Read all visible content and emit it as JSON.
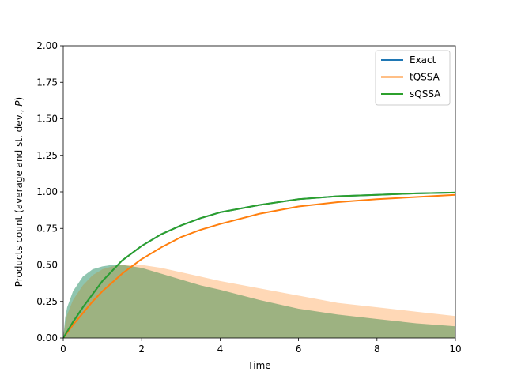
{
  "chart_data": {
    "type": "line",
    "xlabel": "Time",
    "ylabel": "Products count (average and st. dev., P)",
    "ylabel_parts": {
      "prefix": "Products count (average and st. dev., ",
      "var": "P",
      "suffix": ")"
    },
    "xlim": [
      0,
      10
    ],
    "ylim": [
      0,
      2
    ],
    "xticks": [
      0,
      2,
      4,
      6,
      8,
      10
    ],
    "xtick_labels": [
      "0",
      "2",
      "4",
      "6",
      "8",
      "10"
    ],
    "yticks": [
      0,
      0.25,
      0.5,
      0.75,
      1.0,
      1.25,
      1.5,
      1.75,
      2.0
    ],
    "ytick_labels": [
      "0.00",
      "0.25",
      "0.50",
      "0.75",
      "1.00",
      "1.25",
      "1.50",
      "1.75",
      "2.00"
    ],
    "grid": false,
    "legend_position": "top-right",
    "series": [
      {
        "name": "Exact",
        "color": "#1f77b4",
        "x": [
          0,
          0.25,
          0.5,
          0.75,
          1,
          1.5,
          2,
          2.5,
          3,
          3.5,
          4,
          5,
          6,
          7,
          8,
          9,
          10
        ],
        "y": [
          0,
          0.11,
          0.21,
          0.3,
          0.39,
          0.53,
          0.63,
          0.71,
          0.77,
          0.82,
          0.86,
          0.91,
          0.95,
          0.97,
          0.98,
          0.99,
          0.995
        ]
      },
      {
        "name": "tQSSA",
        "color": "#ff7f0e",
        "x": [
          0,
          0.25,
          0.5,
          0.75,
          1,
          1.5,
          2,
          2.5,
          3,
          3.5,
          4,
          5,
          6,
          7,
          8,
          9,
          10
        ],
        "y": [
          0,
          0.09,
          0.17,
          0.25,
          0.32,
          0.44,
          0.54,
          0.62,
          0.69,
          0.74,
          0.78,
          0.85,
          0.9,
          0.93,
          0.95,
          0.965,
          0.98
        ]
      },
      {
        "name": "sQSSA",
        "color": "#2ca02c",
        "x": [
          0,
          0.25,
          0.5,
          0.75,
          1,
          1.5,
          2,
          2.5,
          3,
          3.5,
          4,
          5,
          6,
          7,
          8,
          9,
          10
        ],
        "y": [
          0,
          0.11,
          0.21,
          0.3,
          0.39,
          0.53,
          0.63,
          0.71,
          0.77,
          0.82,
          0.86,
          0.91,
          0.95,
          0.97,
          0.98,
          0.99,
          0.995
        ]
      }
    ],
    "std_bands": [
      {
        "series": "Exact",
        "color": "#1f77b4",
        "x": [
          0,
          0.05,
          0.1,
          0.25,
          0.5,
          0.75,
          1,
          1.25,
          1.5,
          2,
          2.5,
          3,
          3.5,
          4,
          5,
          6,
          7,
          8,
          9,
          10
        ],
        "upper": [
          0,
          0.14,
          0.21,
          0.32,
          0.42,
          0.47,
          0.49,
          0.5,
          0.5,
          0.48,
          0.44,
          0.4,
          0.36,
          0.33,
          0.26,
          0.2,
          0.16,
          0.13,
          0.1,
          0.08
        ]
      },
      {
        "series": "tQSSA",
        "color": "#ff7f0e",
        "x": [
          0,
          0.05,
          0.1,
          0.25,
          0.5,
          0.75,
          1,
          1.25,
          1.5,
          2,
          2.5,
          3,
          3.5,
          4,
          5,
          6,
          7,
          8,
          9,
          10
        ],
        "upper": [
          0,
          0.1,
          0.16,
          0.26,
          0.36,
          0.43,
          0.47,
          0.49,
          0.5,
          0.5,
          0.48,
          0.45,
          0.42,
          0.39,
          0.34,
          0.29,
          0.24,
          0.21,
          0.18,
          0.15
        ]
      },
      {
        "series": "sQSSA",
        "color": "#2ca02c",
        "x": [
          0,
          0.05,
          0.1,
          0.25,
          0.5,
          0.75,
          1,
          1.25,
          1.5,
          2,
          2.5,
          3,
          3.5,
          4,
          5,
          6,
          7,
          8,
          9,
          10
        ],
        "upper": [
          0,
          0.14,
          0.21,
          0.32,
          0.42,
          0.47,
          0.49,
          0.5,
          0.5,
          0.48,
          0.44,
          0.4,
          0.36,
          0.33,
          0.26,
          0.2,
          0.16,
          0.13,
          0.1,
          0.08
        ]
      }
    ]
  }
}
